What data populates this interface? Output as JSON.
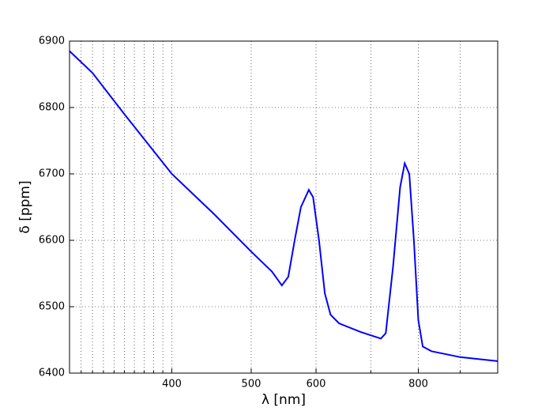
{
  "chart_data": {
    "type": "line",
    "xlabel": "λ [nm]",
    "ylabel": "δ [ppm]",
    "x_scale": "log",
    "xlim": [
      300,
      1000
    ],
    "ylim": [
      6400,
      6900
    ],
    "xticks": [
      400,
      500,
      600,
      800
    ],
    "xminor": [
      310,
      320,
      330,
      340,
      350,
      360,
      370,
      380,
      390,
      700,
      900
    ],
    "yticks": [
      6400,
      6500,
      6600,
      6700,
      6800,
      6900
    ],
    "grid": true,
    "series": [
      {
        "color": "#0000ff",
        "x": [
          300,
          320,
          350,
          400,
          450,
          500,
          530,
          545,
          555,
          565,
          575,
          588,
          595,
          605,
          615,
          625,
          640,
          680,
          720,
          730,
          745,
          760,
          770,
          780,
          790,
          800,
          810,
          830,
          900,
          1000
        ],
        "values": [
          6885,
          6852,
          6790,
          6700,
          6640,
          6583,
          6553,
          6532,
          6545,
          6600,
          6650,
          6676,
          6665,
          6600,
          6520,
          6488,
          6475,
          6462,
          6452,
          6460,
          6560,
          6680,
          6716,
          6700,
          6600,
          6480,
          6440,
          6433,
          6424,
          6418
        ]
      }
    ]
  }
}
